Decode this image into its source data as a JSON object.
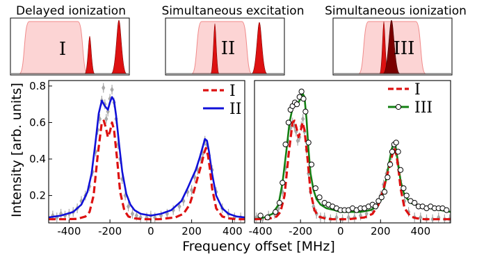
{
  "insets": [
    {
      "title": "Delayed ionization",
      "label": "I"
    },
    {
      "title": "Simultaneous excitation",
      "label": "II"
    },
    {
      "title": "Simultaneous ionization",
      "label": "III"
    }
  ],
  "colors": {
    "pulse_fill": "#fcd4d4",
    "pulse_edge": "#f08a8a",
    "red": "#dd1111",
    "dark_red": "#7a0000",
    "blue": "#1010d8",
    "green": "#138013",
    "data_gray": "#a8a8a8"
  },
  "chart_data": [
    {
      "type": "line",
      "xlabel": "Frequency offset [MHz]",
      "ylabel": "Intensity [arb. units]",
      "xlim": [
        -500,
        460
      ],
      "ylim": [
        0.05,
        0.83
      ],
      "xticks": [
        -400,
        -200,
        0,
        200,
        400
      ],
      "yticks": [
        0.2,
        0.4,
        0.6,
        0.8
      ],
      "legend_position": "top-right",
      "series": [
        {
          "name": "I",
          "style": "dashed",
          "color": "#dd1111",
          "x": [
            -500,
            -420,
            -360,
            -320,
            -300,
            -280,
            -260,
            -240,
            -230,
            -220,
            -210,
            -200,
            -190,
            -180,
            -165,
            -150,
            -130,
            -110,
            -80,
            -40,
            0,
            40,
            80,
            120,
            160,
            190,
            210,
            230,
            250,
            260,
            270,
            280,
            290,
            300,
            320,
            350,
            380,
            420,
            460
          ],
          "y": [
            0.07,
            0.07,
            0.072,
            0.085,
            0.11,
            0.2,
            0.42,
            0.6,
            0.61,
            0.57,
            0.52,
            0.55,
            0.6,
            0.56,
            0.4,
            0.22,
            0.12,
            0.085,
            0.075,
            0.07,
            0.07,
            0.07,
            0.075,
            0.08,
            0.1,
            0.15,
            0.22,
            0.3,
            0.38,
            0.43,
            0.46,
            0.42,
            0.34,
            0.24,
            0.13,
            0.085,
            0.075,
            0.07,
            0.07
          ]
        },
        {
          "name": "II",
          "style": "solid",
          "color": "#1010d8",
          "x": [
            -500,
            -440,
            -380,
            -340,
            -310,
            -290,
            -270,
            -255,
            -240,
            -225,
            -210,
            -200,
            -190,
            -180,
            -170,
            -155,
            -140,
            -120,
            -100,
            -80,
            -50,
            0,
            50,
            100,
            150,
            180,
            200,
            220,
            240,
            255,
            265,
            275,
            285,
            300,
            320,
            350,
            380,
            420,
            460
          ],
          "y": [
            0.08,
            0.09,
            0.11,
            0.15,
            0.22,
            0.32,
            0.5,
            0.65,
            0.72,
            0.69,
            0.67,
            0.71,
            0.74,
            0.72,
            0.64,
            0.48,
            0.33,
            0.21,
            0.15,
            0.12,
            0.1,
            0.09,
            0.1,
            0.12,
            0.17,
            0.24,
            0.29,
            0.34,
            0.41,
            0.47,
            0.51,
            0.5,
            0.44,
            0.32,
            0.2,
            0.13,
            0.1,
            0.085,
            0.08
          ]
        }
      ],
      "points": {
        "x": [
          -480,
          -460,
          -440,
          -420,
          -400,
          -380,
          -360,
          -340,
          -320,
          -300,
          -285,
          -270,
          -260,
          -250,
          -240,
          -232,
          -225,
          -218,
          -210,
          -200,
          -190,
          -180,
          -170,
          -160,
          -150,
          -140,
          -125,
          -110,
          -90,
          -70,
          -50,
          -20,
          0,
          20,
          50,
          80,
          110,
          140,
          160,
          180,
          200,
          215,
          230,
          245,
          255,
          265,
          275,
          285,
          300,
          320,
          350,
          380,
          410,
          440
        ],
        "y": [
          0.09,
          0.08,
          0.1,
          0.09,
          0.1,
          0.11,
          0.13,
          0.17,
          0.2,
          0.25,
          0.33,
          0.44,
          0.56,
          0.62,
          0.72,
          0.79,
          0.7,
          0.62,
          0.66,
          0.73,
          0.78,
          0.71,
          0.62,
          0.48,
          0.4,
          0.29,
          0.2,
          0.14,
          0.1,
          0.09,
          0.08,
          0.08,
          0.09,
          0.08,
          0.09,
          0.1,
          0.12,
          0.14,
          0.17,
          0.22,
          0.23,
          0.3,
          0.34,
          0.4,
          0.43,
          0.5,
          0.48,
          0.42,
          0.34,
          0.22,
          0.13,
          0.1,
          0.08,
          0.08
        ]
      }
    },
    {
      "type": "line",
      "xlabel": "Frequency offset [MHz]",
      "xlim": [
        -430,
        550
      ],
      "ylim": [
        0.05,
        0.83
      ],
      "xticks": [
        -400,
        -200,
        0,
        200,
        400
      ],
      "legend_position": "top-right",
      "series": [
        {
          "name": "I",
          "style": "dashed",
          "color": "#dd1111",
          "x": [
            -430,
            -360,
            -320,
            -300,
            -280,
            -260,
            -240,
            -230,
            -220,
            -210,
            -200,
            -190,
            -180,
            -165,
            -150,
            -130,
            -110,
            -80,
            -40,
            0,
            40,
            80,
            120,
            160,
            190,
            210,
            230,
            250,
            260,
            270,
            280,
            290,
            300,
            320,
            350,
            380,
            420,
            480,
            550
          ],
          "y": [
            0.07,
            0.072,
            0.085,
            0.11,
            0.2,
            0.42,
            0.6,
            0.61,
            0.57,
            0.52,
            0.55,
            0.6,
            0.56,
            0.4,
            0.22,
            0.12,
            0.085,
            0.075,
            0.07,
            0.07,
            0.07,
            0.075,
            0.08,
            0.1,
            0.15,
            0.22,
            0.3,
            0.38,
            0.43,
            0.46,
            0.42,
            0.34,
            0.24,
            0.13,
            0.085,
            0.075,
            0.07,
            0.07,
            0.07
          ]
        },
        {
          "name": "III",
          "style": "solid-markers",
          "color": "#138013",
          "x": [
            -430,
            -380,
            -340,
            -310,
            -290,
            -270,
            -255,
            -240,
            -225,
            -210,
            -200,
            -190,
            -180,
            -170,
            -160,
            -150,
            -135,
            -120,
            -100,
            -70,
            -30,
            0,
            50,
            100,
            150,
            180,
            200,
            215,
            230,
            245,
            255,
            265,
            275,
            285,
            300,
            320,
            350,
            400,
            450,
            500,
            550
          ],
          "y": [
            0.07,
            0.08,
            0.1,
            0.15,
            0.27,
            0.45,
            0.6,
            0.68,
            0.7,
            0.71,
            0.73,
            0.76,
            0.74,
            0.62,
            0.45,
            0.32,
            0.23,
            0.18,
            0.15,
            0.13,
            0.12,
            0.11,
            0.11,
            0.11,
            0.12,
            0.14,
            0.17,
            0.22,
            0.3,
            0.39,
            0.45,
            0.49,
            0.47,
            0.4,
            0.28,
            0.2,
            0.16,
            0.14,
            0.13,
            0.12,
            0.11
          ]
        }
      ],
      "markers": {
        "x": [
          -400,
          -365,
          -325,
          -305,
          -290,
          -275,
          -260,
          -250,
          -240,
          -228,
          -218,
          -205,
          -195,
          -185,
          -175,
          -160,
          -145,
          -125,
          -105,
          -80,
          -60,
          -40,
          -20,
          0,
          20,
          40,
          60,
          80,
          100,
          120,
          140,
          160,
          175,
          190,
          205,
          220,
          235,
          248,
          258,
          268,
          278,
          288,
          300,
          315,
          330,
          350,
          370,
          390,
          410,
          430,
          450,
          470,
          490,
          510,
          530
        ],
        "y": [
          0.09,
          0.08,
          0.11,
          0.16,
          0.27,
          0.48,
          0.6,
          0.67,
          0.69,
          0.71,
          0.7,
          0.74,
          0.77,
          0.73,
          0.66,
          0.49,
          0.37,
          0.24,
          0.19,
          0.16,
          0.15,
          0.14,
          0.13,
          0.12,
          0.12,
          0.12,
          0.13,
          0.12,
          0.13,
          0.13,
          0.14,
          0.15,
          0.14,
          0.17,
          0.19,
          0.22,
          0.3,
          0.37,
          0.44,
          0.48,
          0.49,
          0.44,
          0.34,
          0.24,
          0.2,
          0.17,
          0.16,
          0.14,
          0.14,
          0.13,
          0.14,
          0.13,
          0.13,
          0.13,
          0.12
        ]
      },
      "points": {
        "x": [
          -420,
          -390,
          -360,
          -330,
          -310,
          -290,
          -275,
          -262,
          -250,
          -240,
          -230,
          -222,
          -214,
          -205,
          -196,
          -188,
          -180,
          -170,
          -160,
          -150,
          -135,
          -120,
          -100,
          -80,
          -50,
          -20,
          10,
          40,
          70,
          100,
          130,
          160,
          180,
          200,
          215,
          230,
          245,
          255,
          265,
          275,
          285,
          300,
          320,
          340,
          370,
          400,
          430,
          460,
          490,
          520,
          545
        ],
        "y": [
          0.08,
          0.07,
          0.09,
          0.1,
          0.13,
          0.22,
          0.35,
          0.5,
          0.57,
          0.6,
          0.58,
          0.55,
          0.5,
          0.52,
          0.58,
          0.62,
          0.55,
          0.45,
          0.32,
          0.22,
          0.14,
          0.1,
          0.08,
          0.08,
          0.07,
          0.08,
          0.07,
          0.08,
          0.08,
          0.09,
          0.1,
          0.12,
          0.15,
          0.2,
          0.26,
          0.32,
          0.38,
          0.42,
          0.46,
          0.44,
          0.38,
          0.28,
          0.17,
          0.11,
          0.08,
          0.08,
          0.07,
          0.07,
          0.08,
          0.07,
          0.07
        ]
      }
    }
  ]
}
